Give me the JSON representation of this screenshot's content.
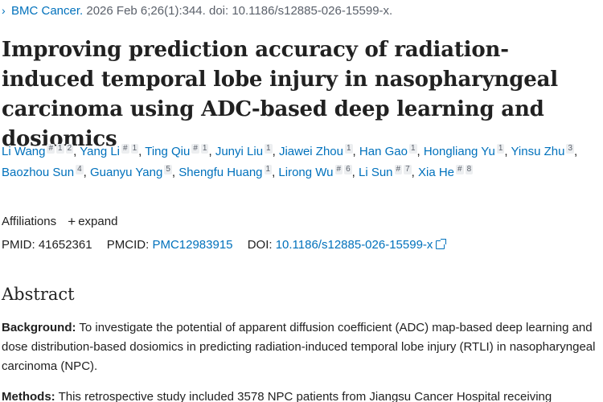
{
  "citation": {
    "chevron": "›",
    "journal": "BMC Cancer.",
    "details": " 2026 Feb 6;26(1):344. doi: 10.1186/s12885-026-15599-x."
  },
  "title": "Improving prediction accuracy of radiation-induced temporal lobe injury in nasopharyngeal carcinoma using ADC-based deep learning and dosiomics",
  "authors": [
    {
      "name": "Li Wang",
      "sups": [
        "#",
        "1",
        "2"
      ]
    },
    {
      "name": "Yang Li",
      "sups": [
        "#",
        "1"
      ]
    },
    {
      "name": "Ting Qiu",
      "sups": [
        "#",
        "1"
      ]
    },
    {
      "name": "Junyi Liu",
      "sups": [
        "1"
      ]
    },
    {
      "name": "Jiawei Zhou",
      "sups": [
        "1"
      ]
    },
    {
      "name": "Han Gao",
      "sups": [
        "1"
      ]
    },
    {
      "name": "Hongliang Yu",
      "sups": [
        "1"
      ]
    },
    {
      "name": "Yinsu Zhu",
      "sups": [
        "3"
      ]
    },
    {
      "name": "Baozhou Sun",
      "sups": [
        "4"
      ]
    },
    {
      "name": "Guanyu Yang",
      "sups": [
        "5"
      ]
    },
    {
      "name": "Shengfu Huang",
      "sups": [
        "1"
      ]
    },
    {
      "name": "Lirong Wu",
      "sups": [
        "#",
        "6"
      ]
    },
    {
      "name": "Li Sun",
      "sups": [
        "#",
        "7"
      ]
    },
    {
      "name": "Xia He",
      "sups": [
        "#",
        "8"
      ]
    }
  ],
  "affiliations": {
    "label": "Affiliations",
    "expand_icon": "plus-icon",
    "expand_label": "expand"
  },
  "ids": {
    "pmid_label": "PMID:",
    "pmid": "41652361",
    "pmcid_label": "PMCID:",
    "pmcid": "PMC12983915",
    "doi_label": "DOI:",
    "doi": "10.1186/s12885-026-15599-x"
  },
  "abstract": {
    "heading": "Abstract",
    "background_label": "Background:",
    "background_text": "To investigate the potential of apparent diffusion coefficient (ADC) map-based deep learning and dose distribution-based dosiomics in predicting radiation-induced temporal lobe injury (RTLI) in nasopharyngeal carcinoma (NPC).",
    "methods_label": "Methods:",
    "methods_text": "This retrospective study included 3578 NPC patients from Jiangsu Cancer Hospital receiving"
  },
  "colors": {
    "link": "#0071bc",
    "text": "#212121",
    "muted": "#5b616b",
    "sup_bg": "#eceef0"
  }
}
